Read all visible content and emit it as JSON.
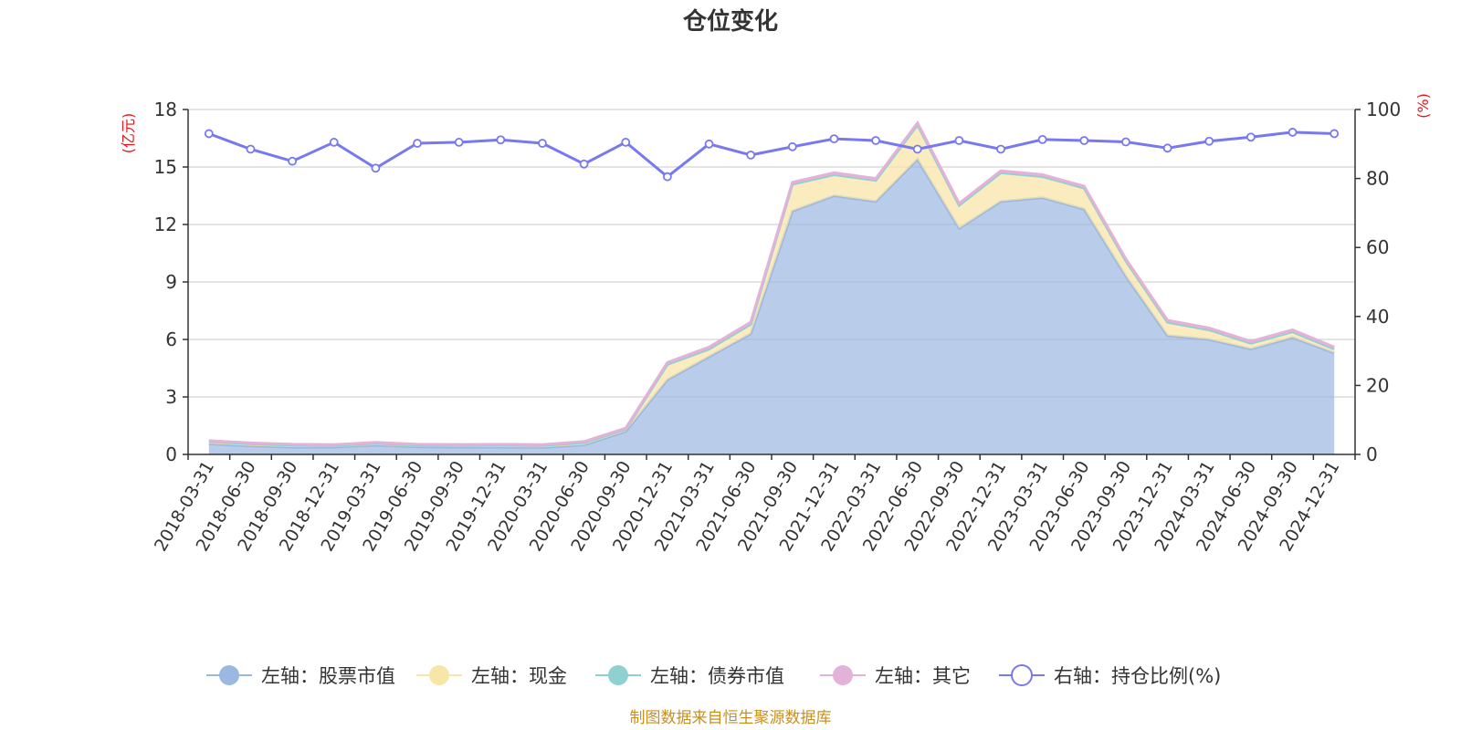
{
  "chart_data": {
    "type": "area",
    "title": "仓位变化",
    "left_axis_unit": "(亿元)",
    "right_axis_unit": "(%)",
    "categories": [
      "2018-03-31",
      "2018-06-30",
      "2018-09-30",
      "2018-12-31",
      "2019-03-31",
      "2019-06-30",
      "2019-09-30",
      "2019-12-31",
      "2020-03-31",
      "2020-06-30",
      "2020-09-30",
      "2020-12-31",
      "2021-03-31",
      "2021-06-30",
      "2021-09-30",
      "2021-12-31",
      "2022-03-31",
      "2022-06-30",
      "2022-09-30",
      "2022-12-31",
      "2023-03-31",
      "2023-06-30",
      "2023-09-30",
      "2023-12-31",
      "2024-03-31",
      "2024-06-30",
      "2024-09-30",
      "2024-12-31"
    ],
    "ylim_left": [
      0,
      18
    ],
    "yticks_left": [
      "0",
      "3",
      "6",
      "9",
      "12",
      "15",
      "18"
    ],
    "ylim_right": [
      0,
      100
    ],
    "yticks_right": [
      "0",
      "20",
      "40",
      "60",
      "80",
      "100"
    ],
    "grid": true,
    "legend_position": "bottom",
    "series": [
      {
        "name": "左轴：股票市值",
        "axis": "left",
        "kind": "stacked-area",
        "color": "#9bb8e2",
        "values": [
          0.55,
          0.45,
          0.38,
          0.38,
          0.48,
          0.4,
          0.38,
          0.38,
          0.36,
          0.5,
          1.2,
          3.9,
          5.1,
          6.3,
          12.7,
          13.5,
          13.2,
          15.4,
          11.8,
          13.2,
          13.4,
          12.8,
          9.3,
          6.2,
          6.0,
          5.5,
          6.1,
          5.3
        ]
      },
      {
        "name": "左轴：现金",
        "axis": "left",
        "kind": "stacked-area",
        "color": "#f8e6a8",
        "values": [
          0.12,
          0.1,
          0.1,
          0.08,
          0.1,
          0.08,
          0.09,
          0.1,
          0.1,
          0.12,
          0.12,
          0.8,
          0.4,
          0.5,
          1.4,
          1.1,
          1.1,
          1.8,
          1.2,
          1.5,
          1.1,
          1.1,
          0.8,
          0.7,
          0.5,
          0.3,
          0.3,
          0.2
        ]
      },
      {
        "name": "左轴：债券市值",
        "axis": "left",
        "kind": "stacked-area",
        "color": "#8fd0d0",
        "values": [
          0,
          0,
          0,
          0,
          0,
          0,
          0,
          0,
          0,
          0,
          0,
          0,
          0,
          0,
          0,
          0,
          0,
          0,
          0,
          0,
          0,
          0,
          0,
          0,
          0,
          0,
          0,
          0
        ]
      },
      {
        "name": "左轴：其它",
        "axis": "left",
        "kind": "stacked-area",
        "color": "#e4b2d8",
        "values": [
          0.05,
          0.05,
          0.05,
          0.05,
          0.05,
          0.05,
          0.05,
          0.05,
          0.05,
          0.05,
          0.05,
          0.1,
          0.1,
          0.1,
          0.1,
          0.1,
          0.1,
          0.1,
          0.1,
          0.1,
          0.1,
          0.1,
          0.1,
          0.1,
          0.1,
          0.1,
          0.1,
          0.1
        ]
      },
      {
        "name": "右轴：持仓比例(%)",
        "axis": "right",
        "kind": "line",
        "color": "#7878f0",
        "values": [
          93,
          88.5,
          85,
          90.5,
          83,
          90.2,
          90.5,
          91.2,
          90.2,
          84.2,
          90.5,
          80.5,
          90,
          86.8,
          89.2,
          91.5,
          91,
          88.5,
          91,
          88.5,
          91.3,
          91,
          90.6,
          88.8,
          90.8,
          92,
          93.4,
          93
        ]
      }
    ]
  },
  "footer": {
    "source": "制图数据来自恒生聚源数据库"
  }
}
